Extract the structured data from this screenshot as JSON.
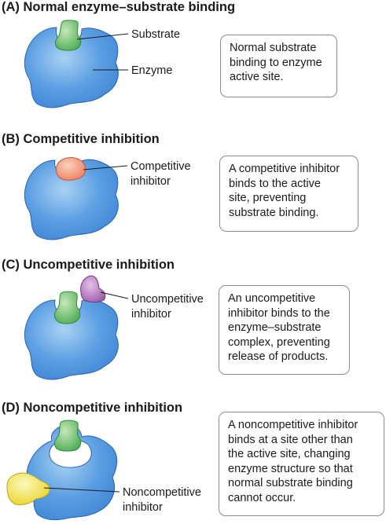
{
  "colors": {
    "enzyme": "#3f86d6",
    "enzyme_highlight": "#a9d2f3",
    "enzyme_edge": "#2a63ad",
    "substrate": "#4aab52",
    "competitive_inhibitor": "#ee7c5a",
    "uncompetitive_inhibitor": "#9b59a8",
    "noncompetitive_inhibitor": "#eee23a",
    "box_border": "#8c8c8c"
  },
  "panels": [
    {
      "title": "(A)  Normal enzyme–substrate binding",
      "labels": [
        "Substrate",
        "Enzyme"
      ],
      "description": [
        "Normal substrate",
        "binding to enzyme",
        "active site."
      ]
    },
    {
      "title": "(B)  Competitive inhibition",
      "labels": [
        "Competitive",
        "inhibitor"
      ],
      "description": [
        "A competitive inhibitor",
        "binds to the active",
        "site, preventing",
        "substrate binding."
      ]
    },
    {
      "title": "(C)  Uncompetitive inhibition",
      "labels": [
        "Uncompetitive",
        "inhibitor"
      ],
      "description": [
        "An uncompetitive",
        "inhibitor binds to the",
        "enzyme–substrate",
        "complex, preventing",
        "release of products."
      ]
    },
    {
      "title": "(D)  Noncompetitive inhibition",
      "labels": [
        "Noncompetitive",
        "inhibitor"
      ],
      "description": [
        "A noncompetitive inhibitor",
        "binds at a site other than",
        "the active site, changing",
        "enzyme structure so that",
        "normal substrate binding",
        "cannot occur."
      ]
    }
  ]
}
